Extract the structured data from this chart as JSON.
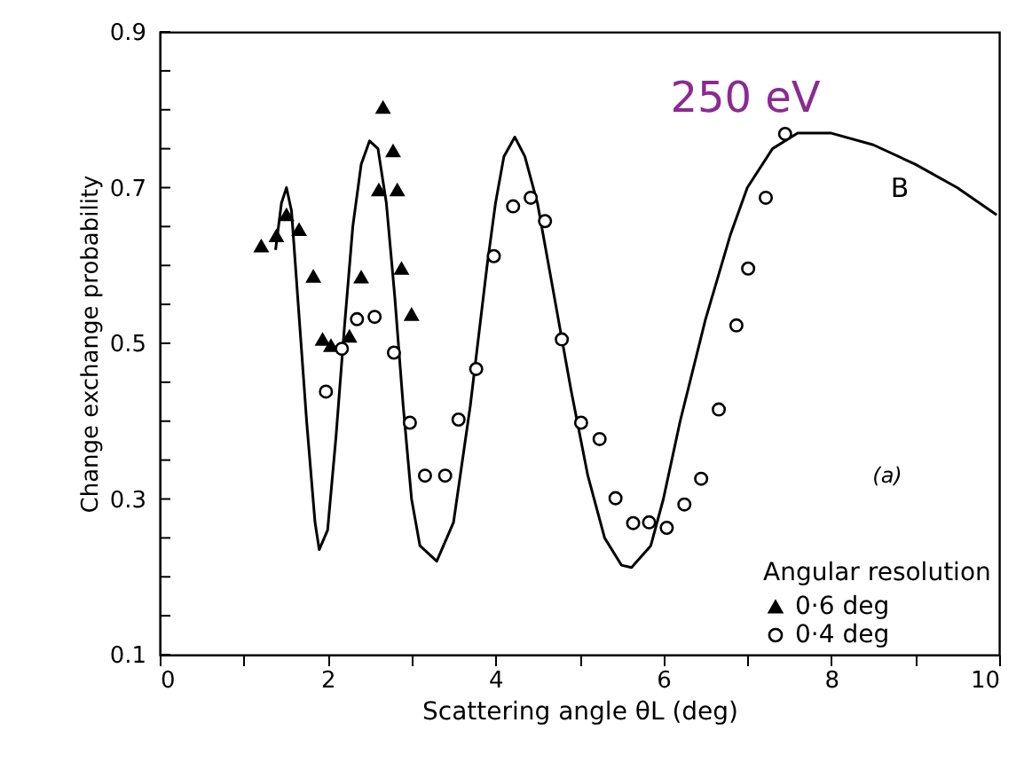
{
  "chart_data": {
    "type": "scatter",
    "xlabel": "Scattering angle θL (deg)",
    "ylabel": "Change exchange probability",
    "legend_title": "Angular resolution",
    "legend": "bottom right",
    "grid": false,
    "xlim": [
      0,
      10
    ],
    "ylim": [
      0.1,
      0.9
    ],
    "xticks": [
      0,
      {
        "value": 1,
        "label": null
      },
      2,
      {
        "value": 3,
        "label": null
      },
      4,
      {
        "value": 5,
        "label": null
      },
      6,
      {
        "value": 7,
        "label": null
      },
      8,
      {
        "value": 9,
        "label": null
      },
      10
    ],
    "yticks": [
      0.1,
      {
        "value": 0.15,
        "label": null
      },
      {
        "value": 0.2,
        "label": null
      },
      {
        "value": 0.25,
        "label": null
      },
      0.3,
      {
        "value": 0.35,
        "label": null
      },
      {
        "value": 0.4,
        "label": null
      },
      {
        "value": 0.45,
        "label": null
      },
      0.5,
      {
        "value": 0.55,
        "label": null
      },
      {
        "value": 0.6,
        "label": null
      },
      {
        "value": 0.65,
        "label": null
      },
      0.7,
      {
        "value": 0.75,
        "label": null
      },
      {
        "value": 0.8,
        "label": null
      },
      {
        "value": 0.85,
        "label": null
      },
      0.9
    ],
    "annotations": [
      "250 eV",
      "B",
      "(a)"
    ],
    "series": [
      {
        "name": "0·6 deg",
        "color": "#000000",
        "marker": "triangle",
        "x": [
          1.21,
          1.39,
          1.51,
          1.66,
          1.83,
          1.94,
          2.04,
          2.26,
          2.4,
          2.61,
          2.66,
          2.78,
          2.83,
          2.88,
          3.0
        ],
        "values": [
          0.625,
          0.638,
          0.665,
          0.646,
          0.586,
          0.505,
          0.497,
          0.509,
          0.585,
          0.697,
          0.803,
          0.747,
          0.697,
          0.596,
          0.537
        ]
      },
      {
        "name": "0·4 deg",
        "color": "#000000",
        "marker": "circle",
        "x": [
          1.98,
          2.17,
          2.35,
          2.56,
          2.79,
          2.98,
          3.16,
          3.4,
          3.56,
          3.77,
          3.98,
          4.21,
          4.42,
          4.59,
          4.79,
          5.02,
          5.24,
          5.43,
          5.64,
          5.83,
          6.04,
          6.25,
          6.45,
          6.66,
          6.87,
          7.01,
          7.22,
          7.45
        ],
        "values": [
          0.438,
          0.493,
          0.531,
          0.534,
          0.488,
          0.398,
          0.33,
          0.33,
          0.402,
          0.467,
          0.612,
          0.676,
          0.687,
          0.657,
          0.505,
          0.398,
          0.377,
          0.301,
          0.269,
          0.27,
          0.263,
          0.293,
          0.326,
          0.415,
          0.523,
          0.596,
          0.687,
          0.769
        ]
      },
      {
        "type": "line",
        "color": "#000000",
        "line_style": "solid",
        "x": [
          1.38,
          1.45,
          1.51,
          1.57,
          1.65,
          1.75,
          1.85,
          1.9,
          2.0,
          2.1,
          2.2,
          2.3,
          2.4,
          2.5,
          2.6,
          2.7,
          2.8,
          2.9,
          3.0,
          3.1,
          3.3,
          3.5,
          3.7,
          3.9,
          4.0,
          4.1,
          4.23,
          4.35,
          4.5,
          4.7,
          4.9,
          5.1,
          5.3,
          5.5,
          5.62,
          5.85,
          6.0,
          6.2,
          6.5,
          6.8,
          7.0,
          7.3,
          7.6,
          8.0,
          8.5,
          9.0,
          9.5,
          9.97
        ],
        "values": [
          0.62,
          0.68,
          0.7,
          0.67,
          0.55,
          0.4,
          0.27,
          0.235,
          0.26,
          0.38,
          0.52,
          0.65,
          0.73,
          0.76,
          0.75,
          0.68,
          0.56,
          0.42,
          0.3,
          0.24,
          0.22,
          0.27,
          0.42,
          0.6,
          0.68,
          0.74,
          0.765,
          0.74,
          0.68,
          0.56,
          0.44,
          0.33,
          0.25,
          0.215,
          0.212,
          0.24,
          0.3,
          0.4,
          0.53,
          0.64,
          0.7,
          0.75,
          0.77,
          0.77,
          0.755,
          0.73,
          0.7,
          0.665
        ]
      }
    ]
  }
}
